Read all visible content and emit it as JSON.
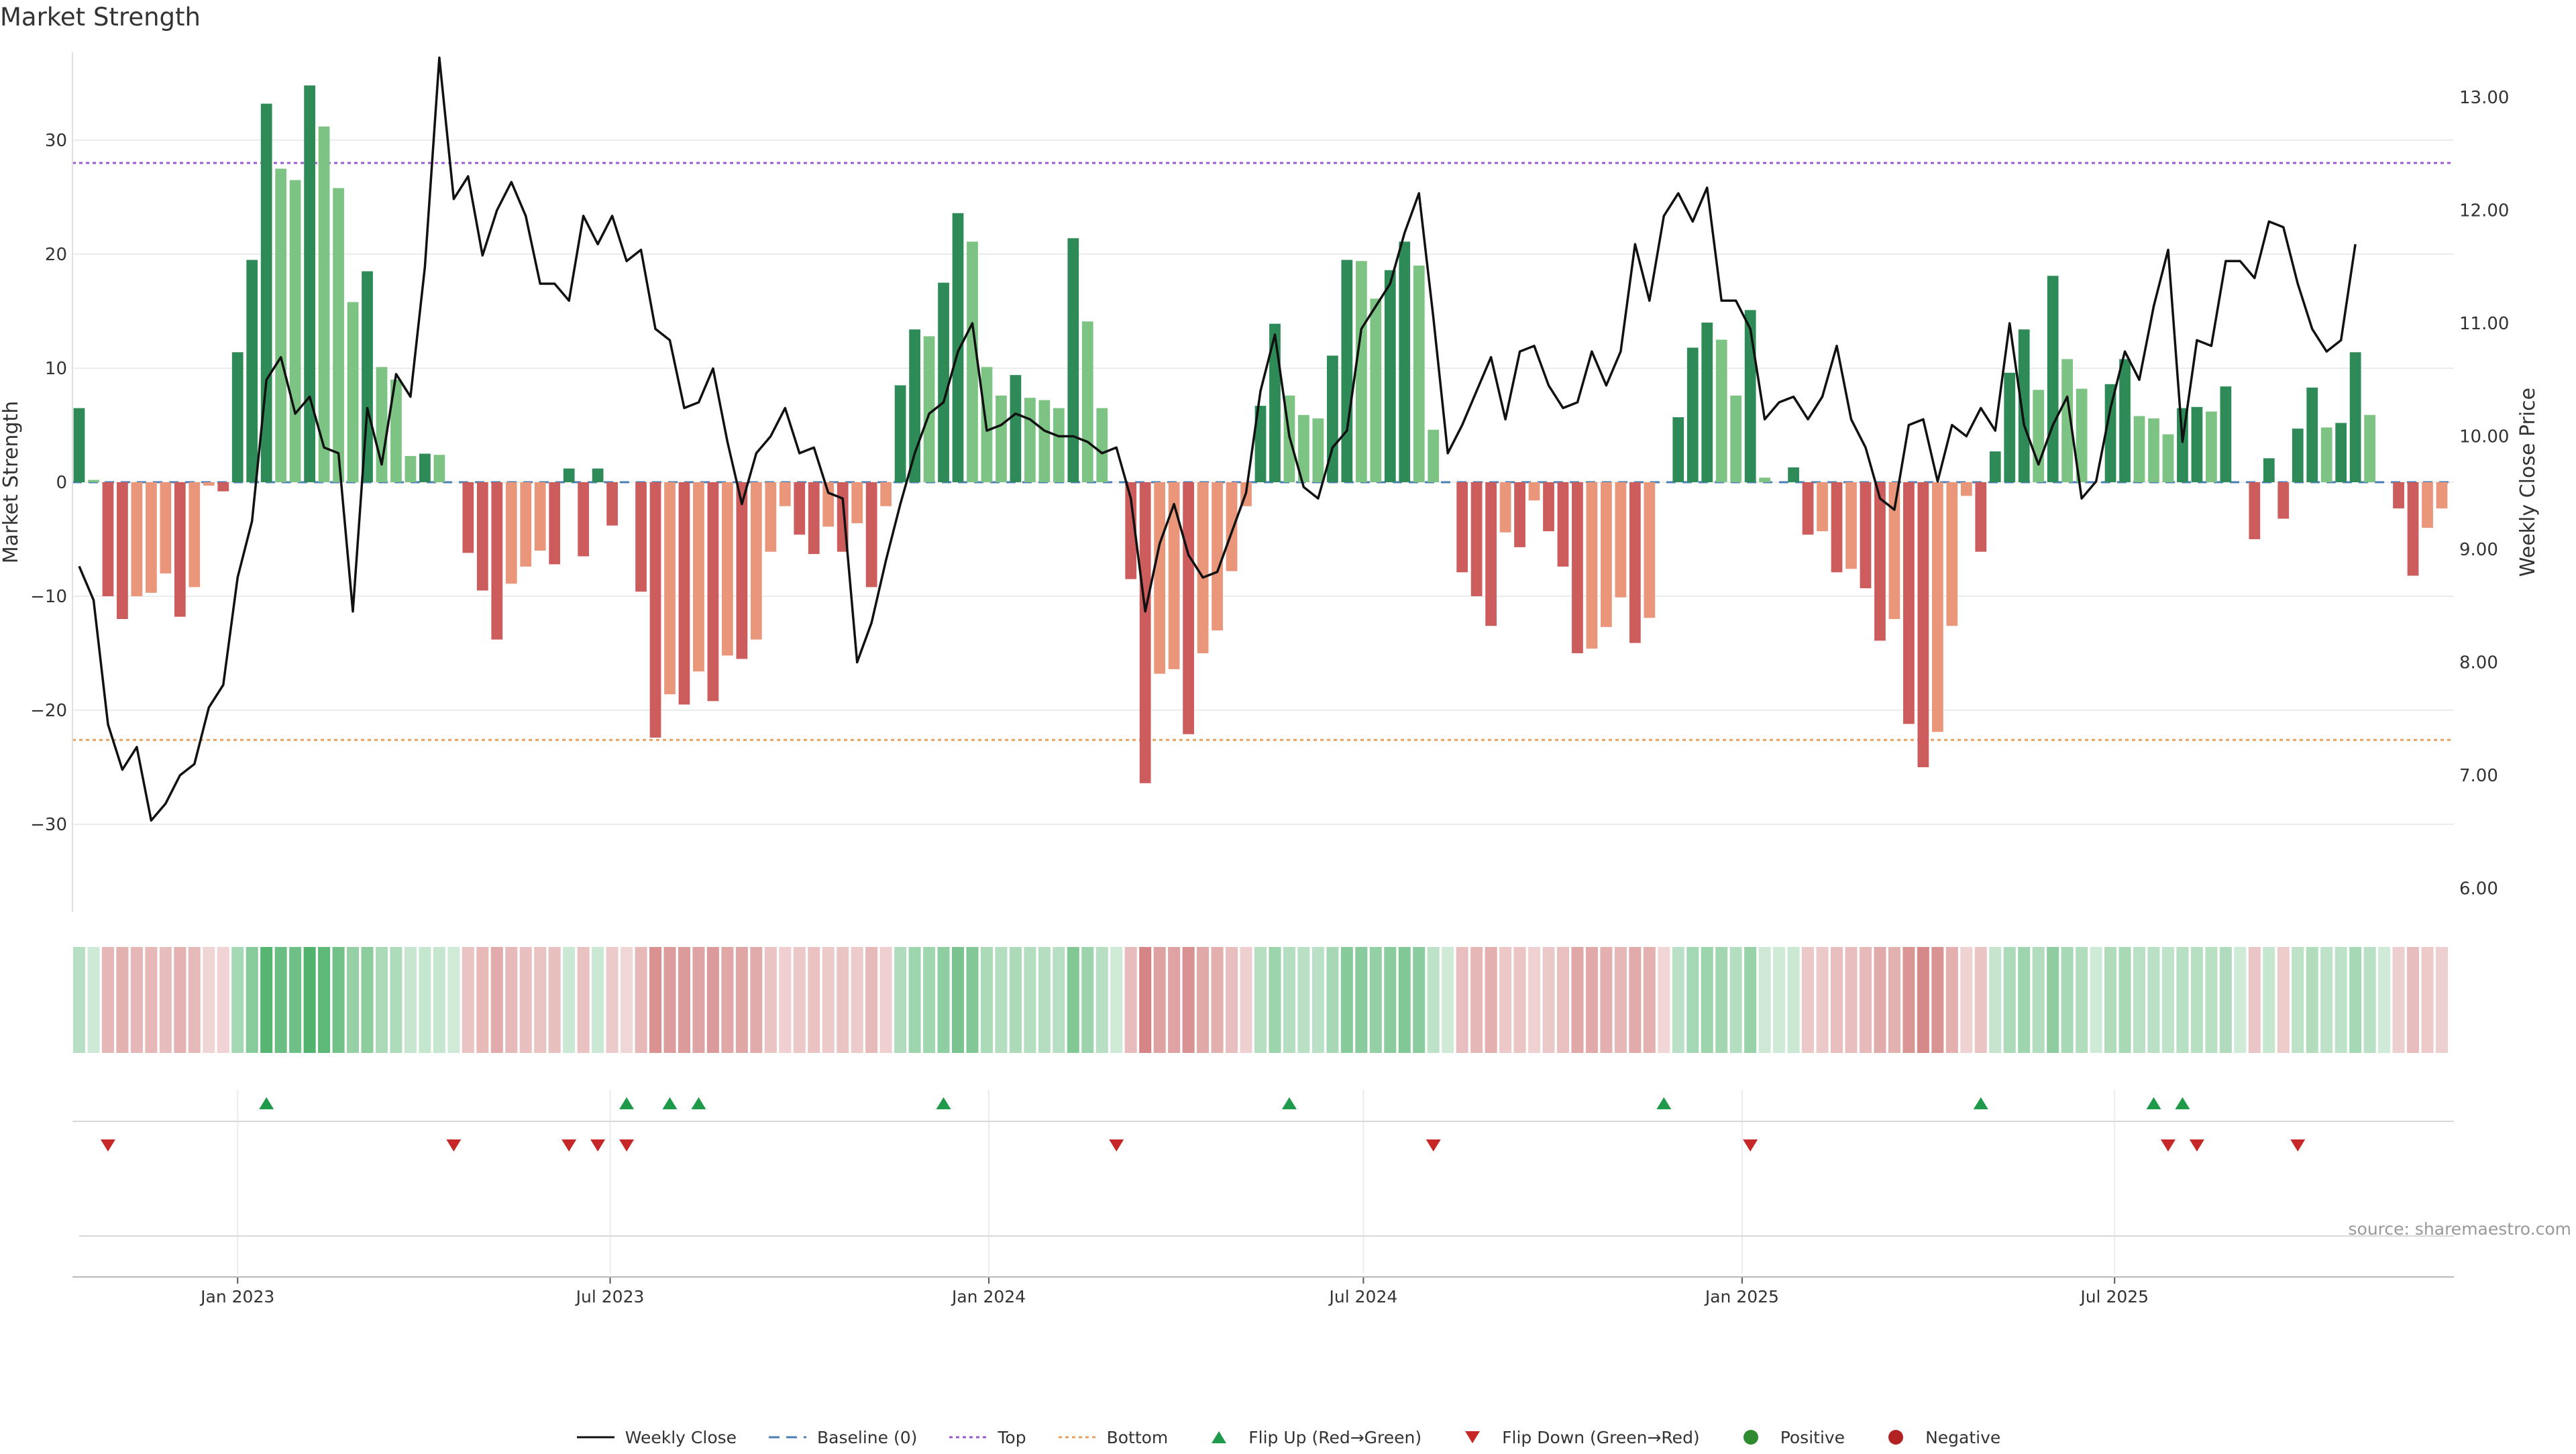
{
  "title": "Market Strength",
  "source": "source: sharemaestro.com",
  "colors": {
    "pos_strong": "#2e8b57",
    "pos_light": "#7dc383",
    "neg_strong": "#cd5c5c",
    "neg_light": "#e9967a",
    "line": "#111111",
    "top": "#9b59d0",
    "bottom": "#e8a060",
    "baseline": "#4a7fb5",
    "flip_up": "#1f9a4a",
    "flip_down": "#c62828",
    "positive": "#2e8b2e",
    "negative": "#b22222"
  },
  "legend": [
    {
      "key": "line",
      "label": "Weekly Close"
    },
    {
      "key": "baseline",
      "label": "Baseline (0)"
    },
    {
      "key": "top",
      "label": "Top"
    },
    {
      "key": "bottom",
      "label": "Bottom"
    },
    {
      "key": "flip_up",
      "label": "Flip Up (Red→Green)"
    },
    {
      "key": "flip_down",
      "label": "Flip Down (Green→Red)"
    },
    {
      "key": "positive",
      "label": "Positive"
    },
    {
      "key": "negative",
      "label": "Negative"
    }
  ],
  "chart_data": {
    "type": "bar",
    "title": "Market Strength",
    "ylabel_left": "Market Strength",
    "ylabel_right": "Weekly Close Price",
    "x_start": "2022-10-16",
    "x_interval": "weekly",
    "x_ticks": [
      "Jan 2023",
      "Jul 2023",
      "Jan 2024",
      "Jul 2024",
      "Jan 2025",
      "Jul 2025"
    ],
    "x_tick_dates": [
      "2023-01-01",
      "2023-07-01",
      "2024-01-01",
      "2024-07-01",
      "2025-01-01",
      "2025-07-01"
    ],
    "y_left_ticks": [
      -30,
      -20,
      -10,
      0,
      10,
      20,
      30
    ],
    "y_left_lim": [
      -37.5,
      37.5
    ],
    "y_right_ticks": [
      "6.00",
      "7.00",
      "8.00",
      "9.00",
      "10.00",
      "11.00",
      "12.00",
      "13.00"
    ],
    "y_right_lim": [
      5.8,
      13.2
    ],
    "top_level": 28,
    "bottom_level": -22.6,
    "strength": [
      6.5,
      0.2,
      -10,
      -12,
      -10,
      -9.7,
      -8,
      -11.8,
      -9.2,
      -0.3,
      -0.8,
      11.4,
      19.5,
      33.2,
      27.5,
      26.5,
      34.8,
      31.2,
      25.8,
      15.8,
      18.5,
      10.1,
      9,
      2.3,
      2.5,
      2.4,
      0,
      -6.2,
      -9.5,
      -13.8,
      -8.9,
      -7.4,
      -6,
      -7.2,
      1.2,
      -6.5,
      1.2,
      -3.8,
      0,
      -9.6,
      -22.4,
      -18.6,
      -19.5,
      -16.6,
      -19.2,
      -15.2,
      -15.5,
      -13.8,
      -6.1,
      -2.1,
      -4.6,
      -6.3,
      -3.9,
      -6.1,
      -3.6,
      -9.2,
      -2.1,
      8.5,
      13.4,
      12.8,
      17.5,
      23.6,
      21.1,
      10.1,
      7.6,
      9.4,
      7.4,
      7.2,
      6.5,
      21.4,
      14.1,
      6.5,
      0,
      -8.5,
      -26.4,
      -16.8,
      -16.4,
      -22.1,
      -15,
      -13,
      -7.8,
      -2.1,
      6.7,
      13.9,
      7.6,
      5.9,
      5.6,
      11.1,
      19.5,
      19.4,
      16.1,
      18.6,
      21.1,
      19,
      4.6,
      0,
      -7.9,
      -10,
      -12.6,
      -4.4,
      -5.7,
      -1.6,
      -4.3,
      -7.4,
      -15,
      -14.6,
      -12.7,
      -10.1,
      -14.1,
      -11.9,
      0,
      5.7,
      11.8,
      14,
      12.5,
      7.6,
      15.1,
      0.4,
      0,
      1.3,
      -4.6,
      -4.3,
      -7.9,
      -7.6,
      -9.3,
      -13.9,
      -12,
      -21.2,
      -25,
      -21.9,
      -12.6,
      -1.2,
      -6.1,
      2.7,
      9.6,
      13.4,
      8.1,
      18.1,
      10.8,
      8.2,
      0,
      8.6,
      10.8,
      5.8,
      5.6,
      4.2,
      6.5,
      6.6,
      6.2,
      8.4,
      0,
      -5,
      2.1,
      -3.2,
      4.7,
      8.3,
      4.8,
      5.2,
      11.4,
      5.9,
      0,
      -2.3,
      -8.2,
      -4,
      -2.3
    ],
    "close": [
      8.85,
      8.55,
      7.45,
      7.05,
      7.25,
      6.6,
      6.75,
      7.0,
      7.1,
      7.6,
      7.8,
      8.75,
      9.25,
      10.5,
      10.7,
      10.2,
      10.35,
      9.9,
      9.85,
      8.45,
      10.25,
      9.75,
      10.55,
      10.35,
      11.5,
      13.35,
      12.1,
      12.3,
      11.6,
      12.0,
      12.25,
      11.95,
      11.35,
      11.35,
      11.2,
      11.95,
      11.7,
      11.95,
      11.55,
      11.65,
      10.95,
      10.85,
      10.25,
      10.3,
      10.6,
      9.95,
      9.4,
      9.85,
      10.0,
      10.25,
      9.85,
      9.9,
      9.5,
      9.45,
      8.0,
      8.35,
      8.9,
      9.4,
      9.85,
      10.2,
      10.3,
      10.75,
      11.0,
      10.05,
      10.1,
      10.2,
      10.15,
      10.05,
      10.0,
      10.0,
      9.95,
      9.85,
      9.9,
      9.45,
      8.45,
      9.05,
      9.4,
      8.95,
      8.75,
      8.8,
      9.15,
      9.5,
      10.4,
      10.9,
      10.0,
      9.55,
      9.45,
      9.9,
      10.05,
      10.95,
      11.15,
      11.35,
      11.8,
      12.15,
      11.05,
      9.85,
      10.1,
      10.4,
      10.7,
      10.15,
      10.75,
      10.8,
      10.45,
      10.25,
      10.3,
      10.75,
      10.45,
      10.75,
      11.7,
      11.2,
      11.95,
      12.15,
      11.9,
      12.2,
      11.2,
      11.2,
      10.95,
      10.15,
      10.3,
      10.35,
      10.15,
      10.35,
      10.8,
      10.15,
      9.9,
      9.45,
      9.35,
      10.1,
      10.15,
      9.6,
      10.1,
      10.0,
      10.25,
      10.05,
      11.0,
      10.1,
      9.75,
      10.1,
      10.35,
      9.45,
      9.6,
      10.25,
      10.75,
      10.5,
      11.15,
      11.65,
      9.95,
      10.85,
      10.8,
      11.55,
      11.55,
      11.4,
      11.9,
      11.85,
      11.35,
      10.95,
      10.75,
      10.85,
      11.7
    ],
    "flip_up_indices": [
      13,
      38,
      41,
      43,
      60,
      84,
      110,
      132,
      144,
      146
    ],
    "flip_down_indices": [
      2,
      26,
      34,
      36,
      38,
      72,
      94,
      116,
      145,
      147,
      154
    ]
  }
}
